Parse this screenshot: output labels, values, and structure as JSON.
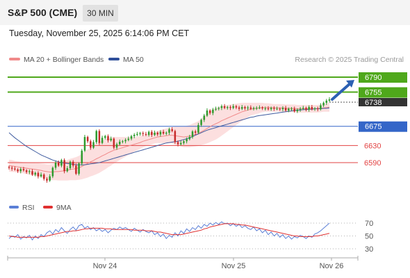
{
  "header": {
    "title": "S&P 500 (CME)",
    "timeframe": "30 MIN"
  },
  "datetime": "Tuesday, November 25, 2025 6:14:06 PM CET",
  "legend": {
    "bb": {
      "label": "MA 20 + Bollinger Bands",
      "color": "#f08a8a"
    },
    "ma50": {
      "label": "MA 50",
      "color": "#3d5a9e"
    },
    "credit": "Research © 2025 Trading Central"
  },
  "rsi_legend": {
    "rsi": {
      "label": "RSI",
      "color": "#5b7fd6"
    },
    "ma": {
      "label": "9MA",
      "color": "#e03030"
    }
  },
  "colors": {
    "up": "#2e9b2e",
    "down": "#c72a2a",
    "resistance": "#4fa81b",
    "pivot": "#3466c8",
    "support": "#e24343",
    "price_tag": "#333333",
    "projection_arrow": "#2c60b3",
    "band_fill": "#fbd4d4"
  },
  "chart_data": [
    {
      "type": "candlestick",
      "title": "",
      "y_range": [
        6540,
        6810
      ],
      "x_ticks": [
        "Nov 24",
        "Nov 25",
        "Nov 26"
      ],
      "levels": [
        {
          "label": "6790",
          "value": 6790,
          "kind": "resistance"
        },
        {
          "label": "6755",
          "value": 6755,
          "kind": "resistance"
        },
        {
          "label": "6675",
          "value": 6675,
          "kind": "pivot"
        },
        {
          "label": "6630",
          "value": 6630,
          "kind": "support"
        },
        {
          "label": "6590",
          "value": 6590,
          "kind": "support"
        }
      ],
      "last_price": {
        "label": "6738",
        "value": 6738
      },
      "closes": [
        6578,
        6576,
        6574,
        6570,
        6575,
        6572,
        6568,
        6570,
        6562,
        6566,
        6558,
        6562,
        6552,
        6548,
        6558,
        6578,
        6590,
        6583,
        6596,
        6570,
        6577,
        6592,
        6583,
        6564,
        6588,
        6618,
        6650,
        6640,
        6625,
        6638,
        6664,
        6636,
        6648,
        6652,
        6642,
        6646,
        6625,
        6633,
        6639,
        6640,
        6643,
        6646,
        6652,
        6655,
        6657,
        6659,
        6657,
        6655,
        6662,
        6655,
        6660,
        6656,
        6662,
        6658,
        6660,
        6668,
        6664,
        6638,
        6633,
        6636,
        6640,
        6645,
        6650,
        6663,
        6660,
        6678,
        6690,
        6700,
        6712,
        6706,
        6714,
        6716,
        6718,
        6722,
        6718,
        6720,
        6718,
        6722,
        6719,
        6716,
        6720,
        6717,
        6719,
        6716,
        6718,
        6718,
        6719,
        6717,
        6717,
        6715,
        6718,
        6716,
        6716,
        6715,
        6718,
        6712,
        6716,
        6716,
        6710,
        6714,
        6716,
        6718,
        6714,
        6720,
        6715,
        6717,
        6715,
        6724,
        6730,
        6735,
        6738
      ],
      "ma20": [
        6583,
        6582,
        6581,
        6580,
        6579,
        6578,
        6577,
        6576,
        6575,
        6574,
        6573,
        6572,
        6570,
        6569,
        6568,
        6568,
        6569,
        6569,
        6570,
        6571,
        6572,
        6574,
        6575,
        6576,
        6578,
        6581,
        6585,
        6588,
        6592,
        6595,
        6599,
        6602,
        6606,
        6609,
        6613,
        6616,
        6619,
        6621,
        6623,
        6625,
        6627,
        6629,
        6631,
        6633,
        6635,
        6637,
        6640,
        6642,
        6644,
        6646,
        6648,
        6650,
        6651,
        6652,
        6653,
        6654,
        6654,
        6653,
        6652,
        6651,
        6650,
        6651,
        6652,
        6654,
        6656,
        6658,
        6662,
        6666,
        6670,
        6674,
        6678,
        6681,
        6684,
        6688,
        6691,
        6694,
        6697,
        6700,
        6703,
        6706,
        6709,
        6711,
        6713,
        6715,
        6716,
        6717,
        6718,
        6719,
        6719,
        6719,
        6719,
        6718,
        6718,
        6718,
        6718,
        6717,
        6717,
        6717,
        6717,
        6716,
        6716,
        6716,
        6716,
        6716,
        6716,
        6716,
        6716,
        6717,
        6718,
        6719,
        6720
      ],
      "bb_halfwidth": [
        14,
        14,
        13,
        13,
        13,
        13,
        14,
        14,
        15,
        15,
        16,
        16,
        17,
        17,
        18,
        19,
        20,
        21,
        22,
        23,
        24,
        25,
        26,
        27,
        28,
        30,
        32,
        33,
        34,
        35,
        36,
        36,
        36,
        35,
        34,
        33,
        31,
        29,
        27,
        25,
        23,
        21,
        19,
        17,
        16,
        15,
        14,
        13,
        13,
        13,
        13,
        14,
        15,
        16,
        17,
        18,
        19,
        21,
        22,
        23,
        24,
        25,
        26,
        27,
        28,
        29,
        31,
        33,
        35,
        36,
        37,
        37,
        36,
        35,
        33,
        31,
        29,
        27,
        25,
        23,
        21,
        19,
        17,
        15,
        14,
        13,
        12,
        11,
        10,
        10,
        9,
        9,
        9,
        9,
        9,
        9,
        9,
        9,
        9,
        9,
        9,
        9,
        9,
        9,
        9,
        9,
        9,
        9,
        9,
        10,
        11
      ],
      "ma50": [
        6660,
        6654,
        6648,
        6643,
        6638,
        6633,
        6628,
        6624,
        6620,
        6616,
        6612,
        6608,
        6605,
        6602,
        6599,
        6596,
        6594,
        6592,
        6590,
        6589,
        6588,
        6587,
        6586,
        6585,
        6585,
        6585,
        6585,
        6586,
        6587,
        6588,
        6589,
        6590,
        6592,
        6594,
        6596,
        6598,
        6600,
        6602,
        6604,
        6606,
        6608,
        6610,
        6612,
        6614,
        6616,
        6618,
        6620,
        6622,
        6624,
        6626,
        6628,
        6630,
        6632,
        6634,
        6636,
        6637,
        6638,
        6639,
        6640,
        6642,
        6644,
        6646,
        6648,
        6651,
        6654,
        6657,
        6660,
        6663,
        6666,
        6668,
        6670,
        6672,
        6674,
        6676,
        6678,
        6680,
        6682,
        6684,
        6686,
        6688,
        6690,
        6692,
        6694,
        6696,
        6697,
        6699,
        6700,
        6701,
        6702,
        6703,
        6704,
        6705,
        6706,
        6707,
        6708,
        6709,
        6710,
        6711,
        6712,
        6713,
        6713,
        6714,
        6714,
        6715,
        6715,
        6716,
        6716,
        6716,
        6717,
        6717,
        6718
      ],
      "projection": {
        "from": 6738,
        "to": 6790
      }
    },
    {
      "type": "line",
      "title": "RSI",
      "y_range": [
        20,
        80
      ],
      "y_ticks": [
        70,
        50,
        30
      ],
      "series": [
        {
          "name": "RSI",
          "values": [
            46,
            50,
            48,
            52,
            45,
            49,
            47,
            51,
            44,
            50,
            46,
            52,
            49,
            55,
            58,
            53,
            60,
            56,
            63,
            58,
            54,
            60,
            64,
            59,
            66,
            68,
            62,
            65,
            60,
            63,
            58,
            61,
            57,
            60,
            55,
            59,
            62,
            60,
            64,
            61,
            63,
            60,
            57,
            62,
            59,
            56,
            60,
            57,
            55,
            58,
            52,
            55,
            49,
            53,
            46,
            51,
            48,
            55,
            50,
            58,
            54,
            61,
            57,
            63,
            60,
            66,
            62,
            68,
            65,
            70,
            67,
            71,
            68,
            72,
            69,
            70,
            66,
            69,
            65,
            68,
            63,
            66,
            62,
            60,
            64,
            58,
            61,
            55,
            59,
            52,
            56,
            50,
            54,
            48,
            52,
            46,
            50,
            45,
            49,
            47,
            51,
            49,
            46,
            50,
            48,
            53,
            55,
            58,
            62,
            66,
            70
          ]
        },
        {
          "name": "9MA",
          "values": [
            50,
            49,
            49,
            48,
            48,
            48,
            48,
            48,
            48,
            48,
            48,
            49,
            49,
            50,
            51,
            52,
            53,
            54,
            55,
            56,
            57,
            57,
            58,
            58,
            59,
            60,
            61,
            61,
            62,
            62,
            62,
            62,
            62,
            61,
            61,
            61,
            60,
            60,
            60,
            60,
            60,
            60,
            60,
            59,
            59,
            59,
            59,
            58,
            58,
            58,
            57,
            56,
            56,
            55,
            54,
            53,
            52,
            52,
            52,
            52,
            53,
            54,
            55,
            56,
            57,
            58,
            59,
            61,
            62,
            64,
            65,
            66,
            67,
            68,
            69,
            69,
            69,
            69,
            68,
            68,
            67,
            67,
            66,
            65,
            64,
            63,
            62,
            61,
            60,
            59,
            58,
            57,
            56,
            55,
            54,
            53,
            52,
            51,
            50,
            50,
            49,
            49,
            49,
            49,
            49,
            50,
            50,
            51,
            52,
            53,
            54
          ]
        }
      ]
    }
  ]
}
